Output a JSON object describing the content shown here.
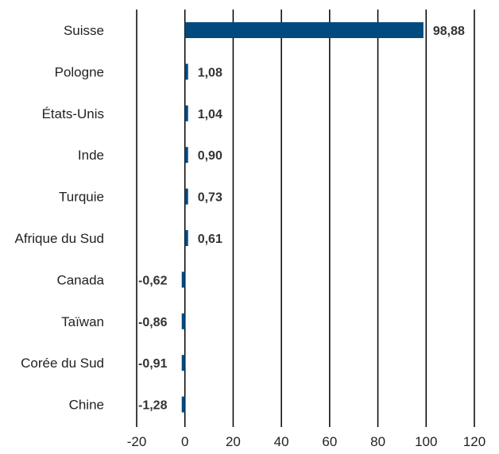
{
  "chart_data": {
    "type": "bar",
    "orientation": "horizontal",
    "categories": [
      "Suisse",
      "Pologne",
      "États-Unis",
      "Inde",
      "Turquie",
      "Afrique du Sud",
      "Canada",
      "Taïwan",
      "Corée du Sud",
      "Chine"
    ],
    "values": [
      98.88,
      1.08,
      1.04,
      0.9,
      0.73,
      0.61,
      -0.62,
      -0.86,
      -0.91,
      -1.28
    ],
    "value_labels": [
      "98,88",
      "1,08",
      "1,04",
      "0,90",
      "0,73",
      "0,61",
      "-0,62",
      "-0,86",
      "-0,91",
      "-1,28"
    ],
    "title": "",
    "xlabel": "",
    "ylabel": "",
    "xlim": [
      -20,
      120
    ],
    "xticks": [
      -20,
      0,
      20,
      40,
      60,
      80,
      100,
      120
    ],
    "xtick_labels": [
      "-20",
      "0",
      "20",
      "40",
      "60",
      "80",
      "100",
      "120"
    ],
    "grid": "vertical",
    "legend": "none",
    "bar_color": "#004a7f",
    "grid_color": "#000000"
  }
}
